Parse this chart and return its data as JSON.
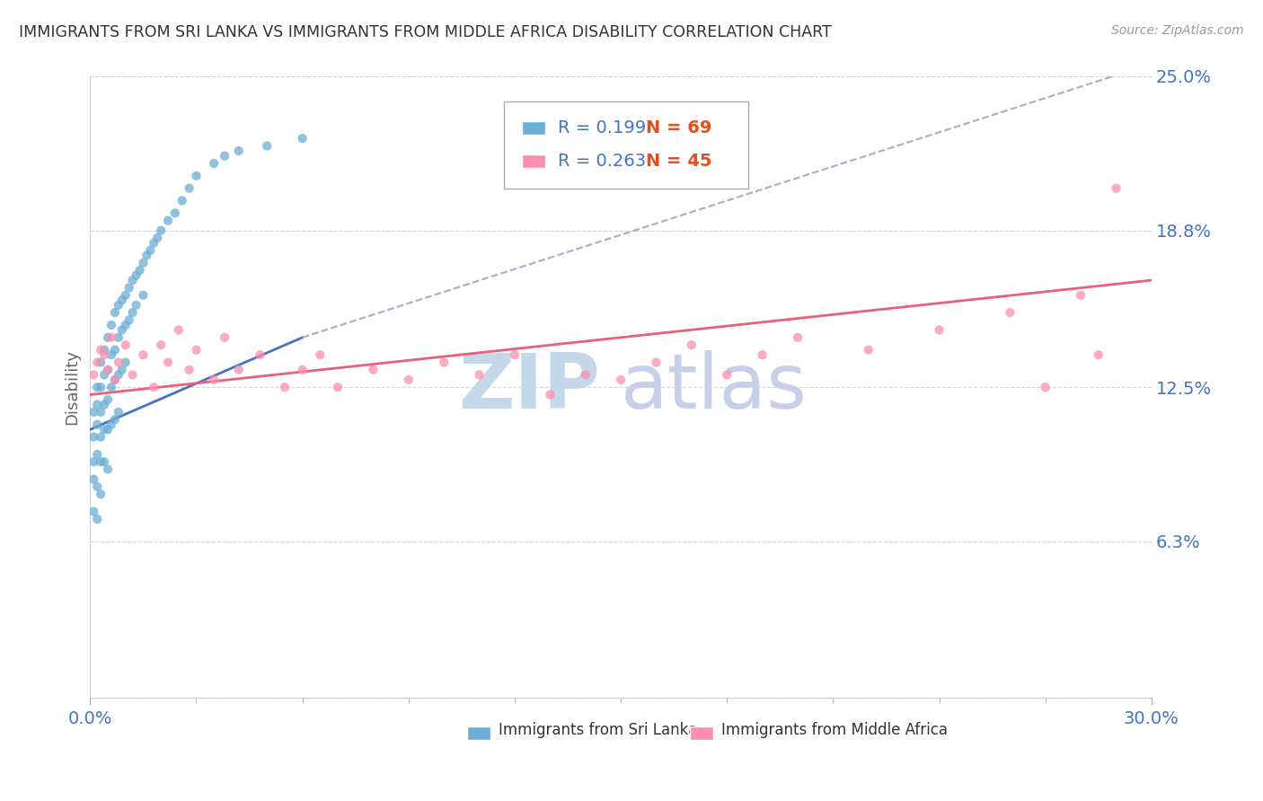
{
  "title": "IMMIGRANTS FROM SRI LANKA VS IMMIGRANTS FROM MIDDLE AFRICA DISABILITY CORRELATION CHART",
  "source_text": "Source: ZipAtlas.com",
  "ylabel": "Disability",
  "xlim": [
    0.0,
    0.3
  ],
  "ylim": [
    0.0,
    0.25
  ],
  "ytick_values": [
    0.0,
    0.063,
    0.125,
    0.188,
    0.25
  ],
  "ytick_labels": [
    "",
    "6.3%",
    "12.5%",
    "18.8%",
    "25.0%"
  ],
  "legend_r1": "R = 0.199",
  "legend_n1": "N = 69",
  "legend_r2": "R = 0.263",
  "legend_n2": "N = 45",
  "color_sri_lanka": "#6baed6",
  "color_middle_africa": "#fc8fae",
  "color_trendline_sri_lanka": "#4472c4",
  "color_trendline_sri_lanka_dash": "#aaaacc",
  "color_trendline_middle_africa": "#e8607a",
  "watermark_zip": "ZIP",
  "watermark_atlas": "atlas",
  "watermark_color_zip": "#c5d8ea",
  "watermark_color_atlas": "#c8cfe8",
  "background_color": "#ffffff",
  "grid_color": "#cccccc",
  "title_color": "#333333",
  "axis_label_color": "#4472c4",
  "legend_r_color": "#4472c4",
  "legend_n_color": "#e05020",
  "sri_lanka_x": [
    0.001,
    0.001,
    0.001,
    0.001,
    0.001,
    0.002,
    0.002,
    0.002,
    0.002,
    0.002,
    0.002,
    0.003,
    0.003,
    0.003,
    0.003,
    0.003,
    0.003,
    0.004,
    0.004,
    0.004,
    0.004,
    0.004,
    0.005,
    0.005,
    0.005,
    0.005,
    0.005,
    0.006,
    0.006,
    0.006,
    0.006,
    0.007,
    0.007,
    0.007,
    0.007,
    0.008,
    0.008,
    0.008,
    0.008,
    0.009,
    0.009,
    0.009,
    0.01,
    0.01,
    0.01,
    0.011,
    0.011,
    0.012,
    0.012,
    0.013,
    0.013,
    0.014,
    0.015,
    0.015,
    0.016,
    0.017,
    0.018,
    0.019,
    0.02,
    0.022,
    0.024,
    0.026,
    0.028,
    0.03,
    0.035,
    0.038,
    0.042,
    0.05,
    0.06
  ],
  "sri_lanka_y": [
    0.115,
    0.105,
    0.095,
    0.088,
    0.075,
    0.125,
    0.118,
    0.11,
    0.098,
    0.085,
    0.072,
    0.135,
    0.125,
    0.115,
    0.105,
    0.095,
    0.082,
    0.14,
    0.13,
    0.118,
    0.108,
    0.095,
    0.145,
    0.132,
    0.12,
    0.108,
    0.092,
    0.15,
    0.138,
    0.125,
    0.11,
    0.155,
    0.14,
    0.128,
    0.112,
    0.158,
    0.145,
    0.13,
    0.115,
    0.16,
    0.148,
    0.132,
    0.162,
    0.15,
    0.135,
    0.165,
    0.152,
    0.168,
    0.155,
    0.17,
    0.158,
    0.172,
    0.175,
    0.162,
    0.178,
    0.18,
    0.183,
    0.185,
    0.188,
    0.192,
    0.195,
    0.2,
    0.205,
    0.21,
    0.215,
    0.218,
    0.22,
    0.222,
    0.225
  ],
  "middle_africa_x": [
    0.001,
    0.002,
    0.003,
    0.004,
    0.005,
    0.006,
    0.007,
    0.008,
    0.01,
    0.012,
    0.015,
    0.018,
    0.02,
    0.022,
    0.025,
    0.028,
    0.03,
    0.035,
    0.038,
    0.042,
    0.048,
    0.055,
    0.06,
    0.065,
    0.07,
    0.08,
    0.09,
    0.1,
    0.11,
    0.12,
    0.13,
    0.14,
    0.15,
    0.16,
    0.17,
    0.18,
    0.19,
    0.2,
    0.22,
    0.24,
    0.26,
    0.27,
    0.28,
    0.285,
    0.29
  ],
  "middle_africa_y": [
    0.13,
    0.135,
    0.14,
    0.138,
    0.132,
    0.145,
    0.128,
    0.135,
    0.142,
    0.13,
    0.138,
    0.125,
    0.142,
    0.135,
    0.148,
    0.132,
    0.14,
    0.128,
    0.145,
    0.132,
    0.138,
    0.125,
    0.132,
    0.138,
    0.125,
    0.132,
    0.128,
    0.135,
    0.13,
    0.138,
    0.122,
    0.13,
    0.128,
    0.135,
    0.142,
    0.13,
    0.138,
    0.145,
    0.14,
    0.148,
    0.155,
    0.125,
    0.162,
    0.138,
    0.205
  ],
  "trendline_sri_lanka_x0": 0.0,
  "trendline_sri_lanka_y0": 0.108,
  "trendline_sri_lanka_x1": 0.06,
  "trendline_sri_lanka_y1": 0.145,
  "trendline_sri_lanka_dash_x0": 0.06,
  "trendline_sri_lanka_dash_y0": 0.145,
  "trendline_sri_lanka_dash_x1": 0.3,
  "trendline_sri_lanka_dash_y1": 0.255,
  "trendline_middle_africa_x0": 0.0,
  "trendline_middle_africa_y0": 0.122,
  "trendline_middle_africa_x1": 0.3,
  "trendline_middle_africa_y1": 0.168
}
